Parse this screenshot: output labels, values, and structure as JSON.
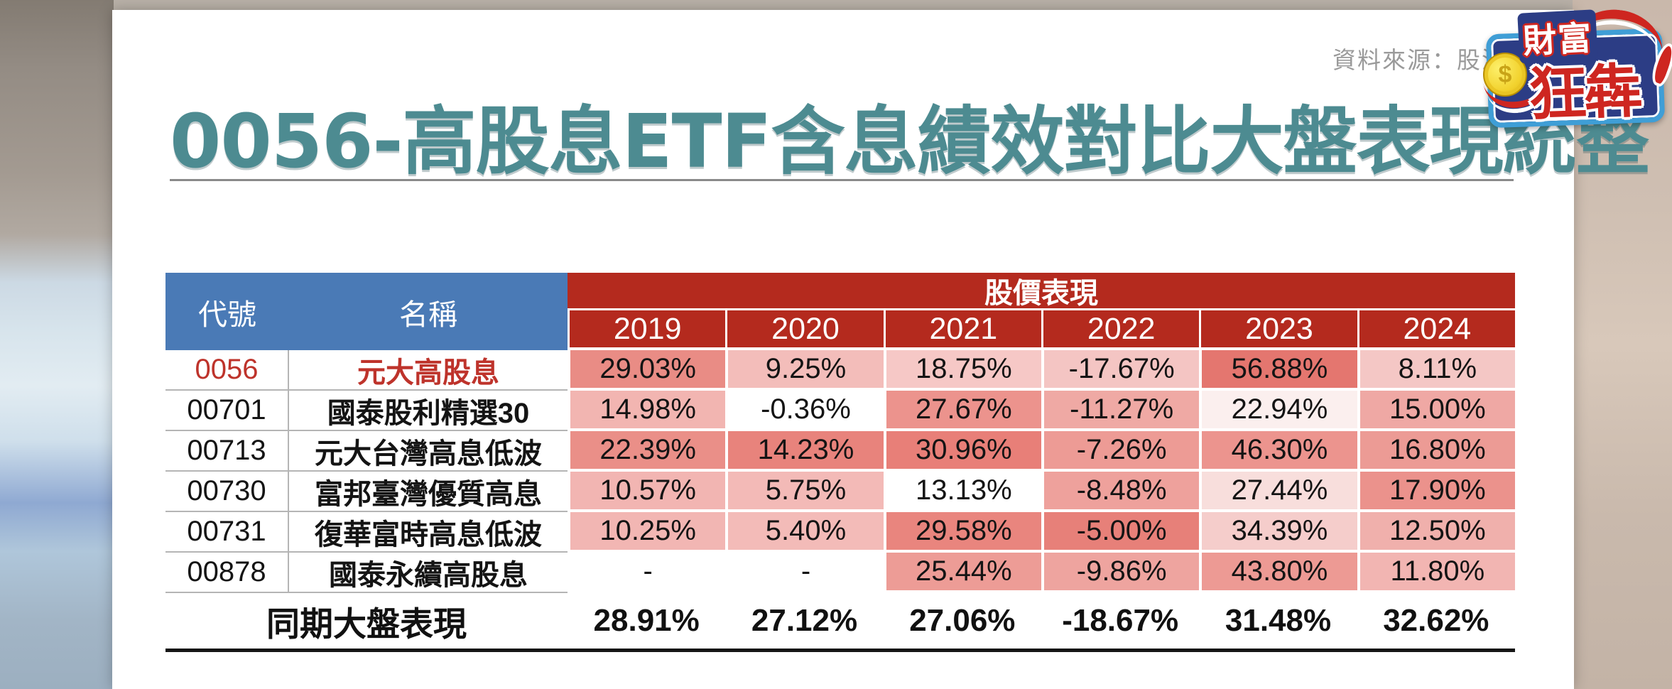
{
  "page": {
    "source_note": "資料來源：股添",
    "title": "0056-高股息ETF含息績效對比大盤表現統整"
  },
  "logo": {
    "line1": "財富",
    "line2": "狂犇",
    "coin_symbol": "$"
  },
  "colors": {
    "title_teal": "#4D8B91",
    "header_red": "#B42A1E",
    "header_blue": "#4A7AB6",
    "highlight_text_red": "#BE332B",
    "summary_line_black": "#151515"
  },
  "table": {
    "header": {
      "code": "代號",
      "name": "名稱",
      "group": "股價表現",
      "years": [
        "2019",
        "2020",
        "2021",
        "2022",
        "2023",
        "2024"
      ]
    },
    "rows": [
      {
        "code": "0056",
        "name": "元大高股息",
        "highlight": true,
        "cells": [
          {
            "v": "29.03%",
            "bg": "#E98C85"
          },
          {
            "v": "9.25%",
            "bg": "#F3BDBA"
          },
          {
            "v": "18.75%",
            "bg": "#F6C8C6"
          },
          {
            "v": "-17.67%",
            "bg": "#F4C5C3"
          },
          {
            "v": "56.88%",
            "bg": "#E4766F"
          },
          {
            "v": "8.11%",
            "bg": "#F4C7C5"
          }
        ]
      },
      {
        "code": "00701",
        "name": "國泰股利精選30",
        "highlight": false,
        "cells": [
          {
            "v": "14.98%",
            "bg": "#F2B5B1"
          },
          {
            "v": "-0.36%",
            "bg": "#FFFFFF"
          },
          {
            "v": "27.67%",
            "bg": "#EC938D"
          },
          {
            "v": "-11.27%",
            "bg": "#EFA9A4"
          },
          {
            "v": "22.94%",
            "bg": "#FBEFEE"
          },
          {
            "v": "15.00%",
            "bg": "#EFA8A4"
          }
        ]
      },
      {
        "code": "00713",
        "name": "元大台灣高息低波",
        "highlight": false,
        "cells": [
          {
            "v": "22.39%",
            "bg": "#EA8F88"
          },
          {
            "v": "14.23%",
            "bg": "#E8837C"
          },
          {
            "v": "30.96%",
            "bg": "#E87F78"
          },
          {
            "v": "-7.26%",
            "bg": "#ED9B95"
          },
          {
            "v": "46.30%",
            "bg": "#EC948E"
          },
          {
            "v": "16.80%",
            "bg": "#EC9B95"
          }
        ]
      },
      {
        "code": "00730",
        "name": "富邦臺灣優質高息",
        "highlight": false,
        "cells": [
          {
            "v": "10.57%",
            "bg": "#F2B5B2"
          },
          {
            "v": "5.75%",
            "bg": "#F3BAB7"
          },
          {
            "v": "13.13%",
            "bg": "#FFFFFF"
          },
          {
            "v": "-8.48%",
            "bg": "#EEA19C"
          },
          {
            "v": "27.44%",
            "bg": "#F8DEDC"
          },
          {
            "v": "17.90%",
            "bg": "#EB928C"
          }
        ]
      },
      {
        "code": "00731",
        "name": "復華富時高息低波",
        "highlight": false,
        "cells": [
          {
            "v": "10.25%",
            "bg": "#F2B6B3"
          },
          {
            "v": "5.40%",
            "bg": "#F3BBB8"
          },
          {
            "v": "29.58%",
            "bg": "#E9857E"
          },
          {
            "v": "-5.00%",
            "bg": "#E78079"
          },
          {
            "v": "34.39%",
            "bg": "#F5CDCB"
          },
          {
            "v": "12.50%",
            "bg": "#F0B0AC"
          }
        ]
      },
      {
        "code": "00878",
        "name": "國泰永續高股息",
        "highlight": false,
        "cells": [
          {
            "v": "-",
            "bg": "#FFFFFF"
          },
          {
            "v": "-",
            "bg": "#FFFFFF"
          },
          {
            "v": "25.44%",
            "bg": "#ED9C96"
          },
          {
            "v": "-9.86%",
            "bg": "#EEA49F"
          },
          {
            "v": "43.80%",
            "bg": "#ED9A94"
          },
          {
            "v": "11.80%",
            "bg": "#F2B5B2"
          }
        ]
      }
    ],
    "summary": {
      "label": "同期大盤表現",
      "values": [
        "28.91%",
        "27.12%",
        "27.06%",
        "-18.67%",
        "31.48%",
        "32.62%"
      ]
    }
  }
}
